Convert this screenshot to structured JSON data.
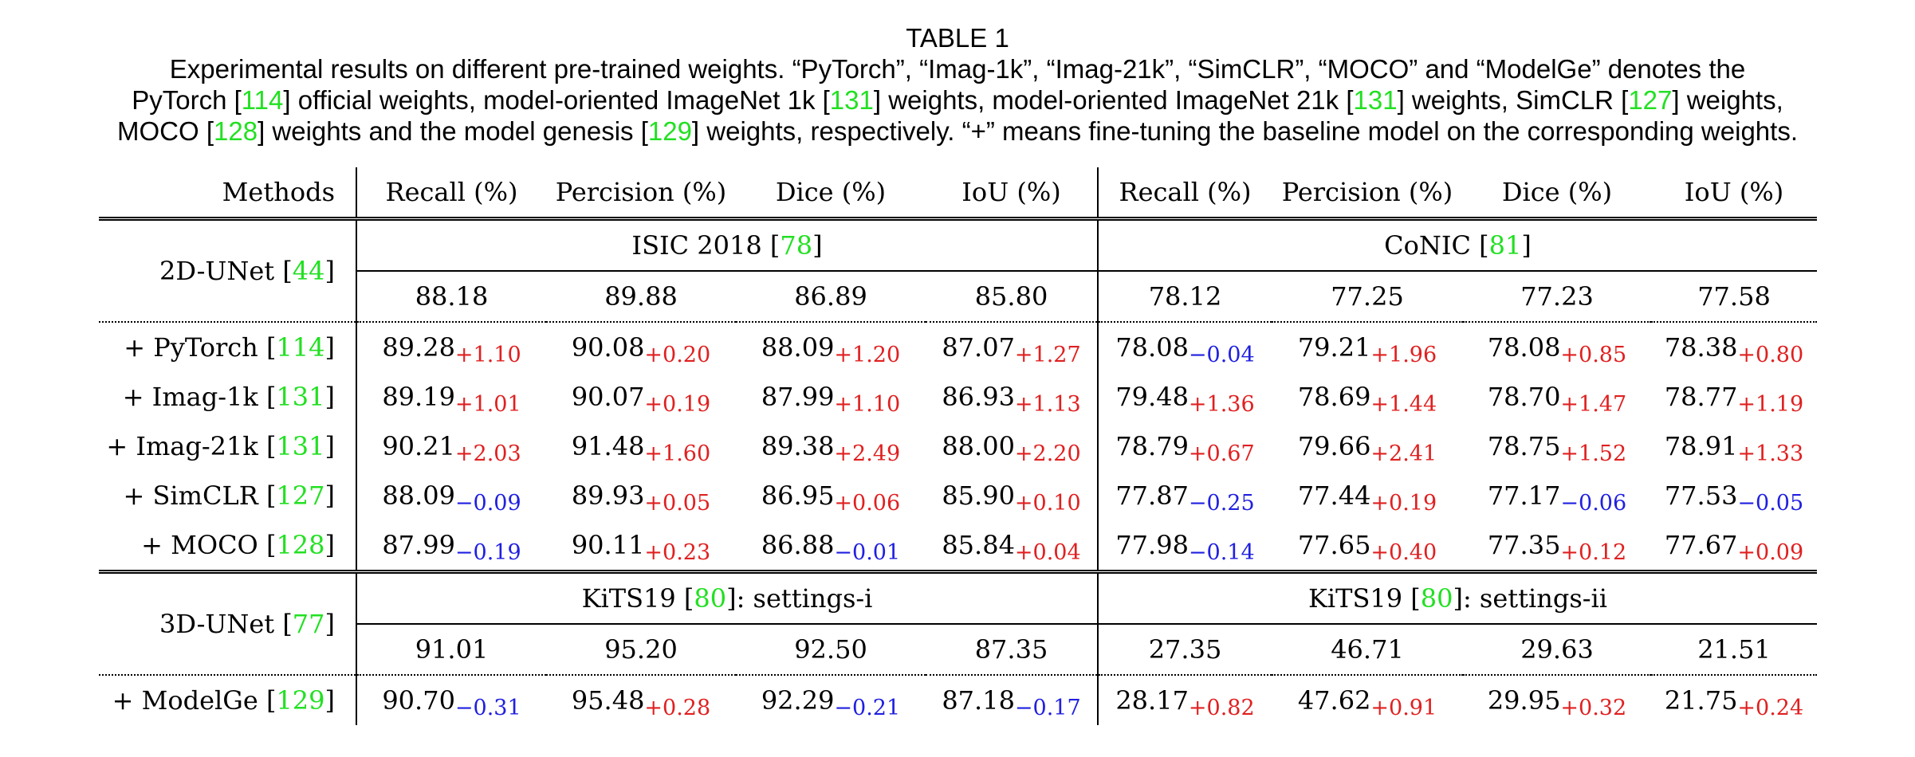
{
  "caption": {
    "title": "TABLE 1",
    "line1": "Experimental results on different pre-trained weights. “PyTorch”, “Imag-1k”, “Imag-21k”, “SimCLR”, “MOCO” and “ModelGe” denotes the",
    "line2_a": "PyTorch [",
    "line2_r1": "114",
    "line2_b": "] official weights, model-oriented ImageNet 1k [",
    "line2_r2": "131",
    "line2_c": "] weights, model-oriented ImageNet 21k [",
    "line2_r3": "131",
    "line2_d": "] weights, SimCLR [",
    "line2_r4": "127",
    "line2_e": "] weights,",
    "line3_a": "MOCO [",
    "line3_r1": "128",
    "line3_b": "] weights and the model genesis [",
    "line3_r2": "129",
    "line3_c": "] weights, respectively. “+” means fine-tuning the baseline model on the corresponding weights."
  },
  "header": [
    "Methods",
    "Recall (%)",
    "Percision (%)",
    "Dice (%)",
    "IoU (%)",
    "Recall (%)",
    "Percision (%)",
    "Dice (%)",
    "IoU (%)"
  ],
  "block1": {
    "method": "2D-UNet [",
    "method_ref": "44",
    "dataset_left": "ISIC 2018 [",
    "dataset_left_ref": "78",
    "dataset_left_tail": "]",
    "dataset_right": "CoNIC [",
    "dataset_right_ref": "81",
    "dataset_right_tail": "]",
    "baseline": [
      "88.18",
      "89.88",
      "86.89",
      "85.80",
      "78.12",
      "77.25",
      "77.23",
      "77.58"
    ],
    "rows": [
      {
        "name": "+ PyTorch [",
        "ref": "114",
        "cells": [
          [
            "89.28",
            "+1.10"
          ],
          [
            "90.08",
            "+0.20"
          ],
          [
            "88.09",
            "+1.20"
          ],
          [
            "87.07",
            "+1.27"
          ],
          [
            "78.08",
            "−0.04"
          ],
          [
            "79.21",
            "+1.96"
          ],
          [
            "78.08",
            "+0.85"
          ],
          [
            "78.38",
            "+0.80"
          ]
        ]
      },
      {
        "name": "+ Imag-1k [",
        "ref": "131",
        "cells": [
          [
            "89.19",
            "+1.01"
          ],
          [
            "90.07",
            "+0.19"
          ],
          [
            "87.99",
            "+1.10"
          ],
          [
            "86.93",
            "+1.13"
          ],
          [
            "79.48",
            "+1.36"
          ],
          [
            "78.69",
            "+1.44"
          ],
          [
            "78.70",
            "+1.47"
          ],
          [
            "78.77",
            "+1.19"
          ]
        ]
      },
      {
        "name": "+ Imag-21k [",
        "ref": "131",
        "cells": [
          [
            "90.21",
            "+2.03"
          ],
          [
            "91.48",
            "+1.60"
          ],
          [
            "89.38",
            "+2.49"
          ],
          [
            "88.00",
            "+2.20"
          ],
          [
            "78.79",
            "+0.67"
          ],
          [
            "79.66",
            "+2.41"
          ],
          [
            "78.75",
            "+1.52"
          ],
          [
            "78.91",
            "+1.33"
          ]
        ]
      },
      {
        "name": "+ SimCLR [",
        "ref": "127",
        "cells": [
          [
            "88.09",
            "−0.09"
          ],
          [
            "89.93",
            "+0.05"
          ],
          [
            "86.95",
            "+0.06"
          ],
          [
            "85.90",
            "+0.10"
          ],
          [
            "77.87",
            "−0.25"
          ],
          [
            "77.44",
            "+0.19"
          ],
          [
            "77.17",
            "−0.06"
          ],
          [
            "77.53",
            "−0.05"
          ]
        ]
      },
      {
        "name": "+ MOCO [",
        "ref": "128",
        "cells": [
          [
            "87.99",
            "−0.19"
          ],
          [
            "90.11",
            "+0.23"
          ],
          [
            "86.88",
            "−0.01"
          ],
          [
            "85.84",
            "+0.04"
          ],
          [
            "77.98",
            "−0.14"
          ],
          [
            "77.65",
            "+0.40"
          ],
          [
            "77.35",
            "+0.12"
          ],
          [
            "77.67",
            "+0.09"
          ]
        ]
      }
    ]
  },
  "block2": {
    "method": "3D-UNet [",
    "method_ref": "77",
    "dataset_left": "KiTS19 [",
    "dataset_left_ref": "80",
    "dataset_left_tail": "]: settings-i",
    "dataset_right": "KiTS19 [",
    "dataset_right_ref": "80",
    "dataset_right_tail": "]: settings-ii",
    "baseline": [
      "91.01",
      "95.20",
      "92.50",
      "87.35",
      "27.35",
      "46.71",
      "29.63",
      "21.51"
    ],
    "rows": [
      {
        "name": "+ ModelGe [",
        "ref": "129",
        "cells": [
          [
            "90.70",
            "−0.31"
          ],
          [
            "95.48",
            "+0.28"
          ],
          [
            "92.29",
            "−0.21"
          ],
          [
            "87.18",
            "−0.17"
          ],
          [
            "28.17",
            "+0.82"
          ],
          [
            "47.62",
            "+0.91"
          ],
          [
            "29.95",
            "+0.32"
          ],
          [
            "21.75",
            "+0.24"
          ]
        ]
      }
    ]
  },
  "colors": {
    "reference": "#22e022",
    "positive": "#e02020",
    "negative": "#2020e0"
  }
}
